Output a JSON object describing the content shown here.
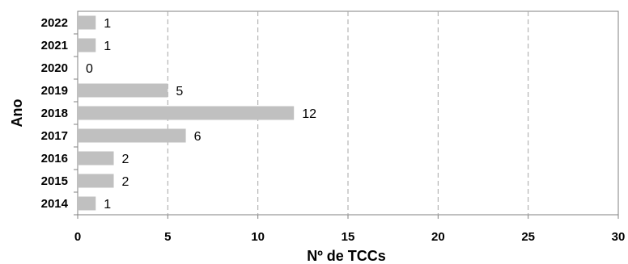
{
  "chart_data": {
    "type": "bar",
    "orientation": "horizontal",
    "categories": [
      "2014",
      "2015",
      "2016",
      "2017",
      "2018",
      "2019",
      "2020",
      "2021",
      "2022"
    ],
    "values": [
      1,
      2,
      2,
      6,
      12,
      5,
      0,
      1,
      1
    ],
    "data_labels": [
      "1",
      "2",
      "2",
      "6",
      "12",
      "5",
      "0",
      "1",
      "1"
    ],
    "xlabel": "Nº de TCCs",
    "ylabel": "Ano",
    "xlim": [
      0,
      30
    ],
    "x_ticks": [
      0,
      5,
      10,
      15,
      20,
      25,
      30
    ],
    "x_tick_labels": [
      "0",
      "5",
      "10",
      "15",
      "20",
      "25",
      "30"
    ],
    "grid": "vertical dashed",
    "legend": "none",
    "colors": {
      "bar": "#c0c0c0",
      "grid": "#a6a6a6",
      "axis": "#808080"
    }
  }
}
